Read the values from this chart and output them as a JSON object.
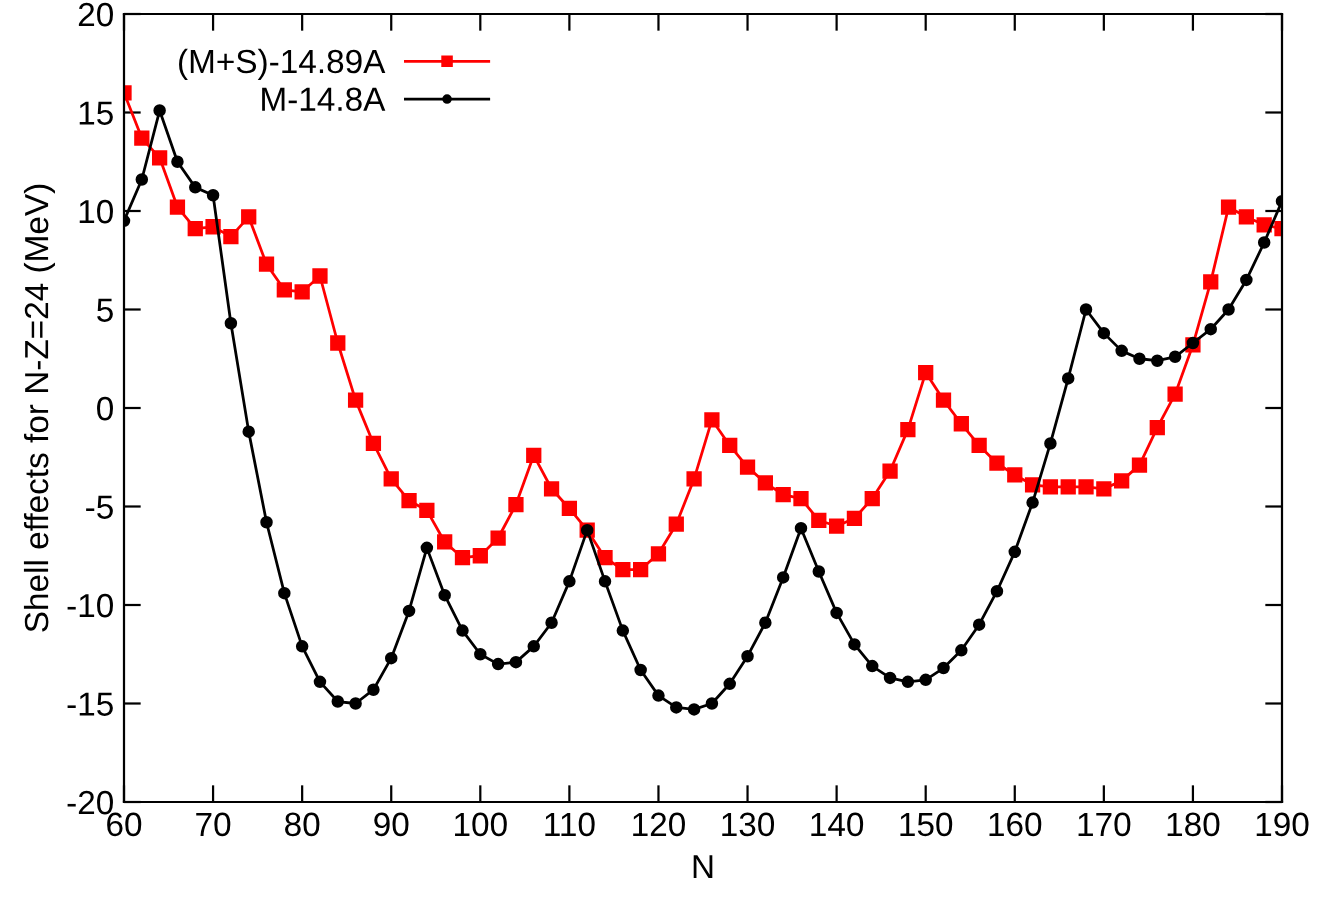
{
  "chart_data": {
    "type": "line",
    "xlabel": "N",
    "ylabel": "Shell effects for N-Z=24 (MeV)",
    "x": [
      60,
      62,
      64,
      66,
      68,
      70,
      72,
      74,
      76,
      78,
      80,
      82,
      84,
      86,
      88,
      90,
      92,
      94,
      96,
      98,
      100,
      102,
      104,
      106,
      108,
      110,
      112,
      114,
      116,
      118,
      120,
      122,
      124,
      126,
      128,
      130,
      132,
      134,
      136,
      138,
      140,
      142,
      144,
      146,
      148,
      150,
      152,
      154,
      156,
      158,
      160,
      162,
      164,
      166,
      168,
      170,
      172,
      174,
      176,
      178,
      180,
      182,
      184,
      186,
      188,
      190
    ],
    "series": [
      {
        "name": "(M+S)-14.89A",
        "color": "#ff0000",
        "marker": "square",
        "values": [
          16,
          13.7,
          12.7,
          10.2,
          9.1,
          9.2,
          8.7,
          9.7,
          7.3,
          6.0,
          5.9,
          6.7,
          3.3,
          0.4,
          -1.8,
          -3.6,
          -4.7,
          -5.2,
          -6.8,
          -7.6,
          -7.5,
          -6.6,
          -4.9,
          -2.4,
          -4.1,
          -5.1,
          -6.2,
          -7.6,
          -8.2,
          -8.2,
          -7.4,
          -5.9,
          -3.6,
          -0.6,
          -1.9,
          -3.0,
          -3.8,
          -4.4,
          -4.6,
          -5.7,
          -6.0,
          -5.6,
          -4.6,
          -3.2,
          -1.1,
          1.8,
          0.4,
          -0.8,
          -1.9,
          -2.8,
          -3.4,
          -3.9,
          -4.0,
          -4.0,
          -4.0,
          -4.1,
          -3.7,
          -2.9,
          -1.0,
          0.7,
          3.2,
          6.4,
          10.2,
          9.7,
          9.3,
          9.1
        ]
      },
      {
        "name": "M-14.8A",
        "color": "#000000",
        "marker": "circle",
        "values": [
          9.5,
          11.6,
          15.1,
          12.5,
          11.2,
          10.8,
          4.3,
          -1.2,
          -5.8,
          -9.4,
          -12.1,
          -13.9,
          -14.9,
          -15.0,
          -14.3,
          -12.7,
          -10.3,
          -7.1,
          -9.5,
          -11.3,
          -12.5,
          -13.0,
          -12.9,
          -12.1,
          -10.9,
          -8.8,
          -6.2,
          -8.8,
          -11.3,
          -13.3,
          -14.6,
          -15.2,
          -15.3,
          -15.0,
          -14.0,
          -12.6,
          -10.9,
          -8.6,
          -6.1,
          -8.3,
          -10.4,
          -12.0,
          -13.1,
          -13.7,
          -13.9,
          -13.8,
          -13.2,
          -12.3,
          -11.0,
          -9.3,
          -7.3,
          -4.8,
          -1.8,
          1.5,
          5.0,
          3.8,
          2.9,
          2.5,
          2.4,
          2.6,
          3.3,
          4.0,
          5.0,
          6.5,
          8.4,
          10.5
        ]
      }
    ],
    "xlim": [
      60,
      190
    ],
    "xticks": [
      60,
      70,
      80,
      90,
      100,
      110,
      120,
      130,
      140,
      150,
      160,
      170,
      180,
      190
    ],
    "ylim": [
      -20,
      20
    ],
    "yticks": [
      -20,
      -15,
      -10,
      -5,
      0,
      5,
      10,
      15,
      20
    ],
    "grid": false,
    "legend": "top left",
    "line_style": "solid"
  }
}
